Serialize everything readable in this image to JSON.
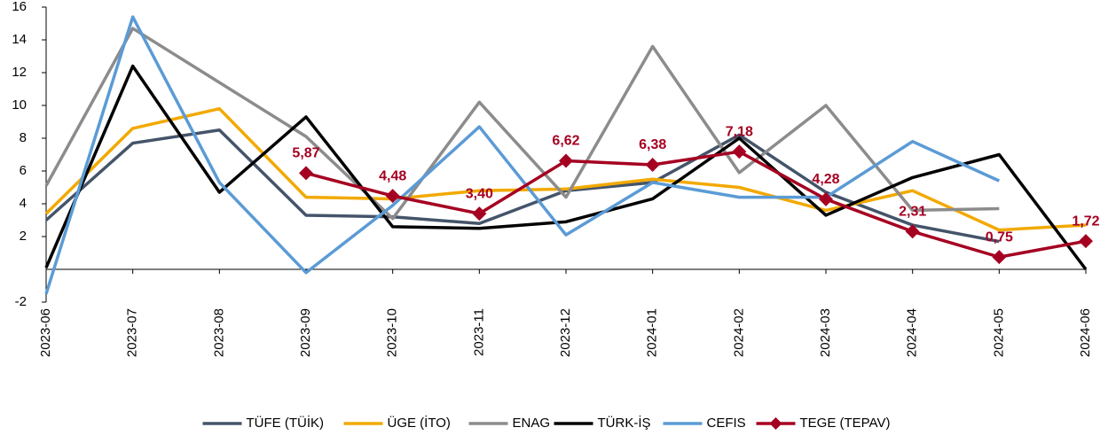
{
  "chart_data": {
    "type": "line",
    "categories": [
      "2023-06",
      "2023-07",
      "2023-08",
      "2023-09",
      "2023-10",
      "2023-11",
      "2023-12",
      "2024-01",
      "2024-02",
      "2024-03",
      "2024-04",
      "2024-05",
      "2024-06"
    ],
    "ylim": [
      -2,
      16
    ],
    "yticks": [
      -2,
      2,
      4,
      6,
      8,
      10,
      12,
      14,
      16
    ],
    "series": [
      {
        "name": "TÜFE (TÜİK)",
        "color": "#44546a",
        "values": [
          3.0,
          7.7,
          8.5,
          3.3,
          3.2,
          2.8,
          4.8,
          5.3,
          8.2,
          4.7,
          2.7,
          1.7,
          null
        ]
      },
      {
        "name": "ÜGE (İTO)",
        "color": "#f2a900",
        "values": [
          3.4,
          8.6,
          9.8,
          4.4,
          4.3,
          4.8,
          4.9,
          5.5,
          5.0,
          3.6,
          4.8,
          2.4,
          2.7
        ]
      },
      {
        "name": "ENAG",
        "color": "#8c8c8c",
        "values": [
          5.1,
          14.7,
          11.4,
          8.1,
          3.1,
          10.2,
          4.4,
          13.6,
          5.9,
          10.0,
          3.6,
          3.7,
          null
        ]
      },
      {
        "name": "TÜRK-İŞ",
        "color": "#000000",
        "values": [
          0.1,
          12.4,
          4.7,
          9.3,
          2.6,
          2.5,
          2.9,
          4.3,
          8.0,
          3.3,
          5.6,
          7.0,
          0.0
        ]
      },
      {
        "name": "CEFIS",
        "color": "#5b9bd5",
        "values": [
          -1.5,
          15.4,
          5.3,
          -0.2,
          3.9,
          8.7,
          2.1,
          5.3,
          4.4,
          4.4,
          7.8,
          5.4,
          null
        ]
      },
      {
        "name": "TEGE (TEPAV)",
        "color": "#a50021",
        "marker": "diamond",
        "values": [
          null,
          null,
          null,
          5.87,
          4.48,
          3.4,
          6.62,
          6.38,
          7.18,
          4.28,
          2.31,
          0.75,
          1.72
        ],
        "value_labels": [
          null,
          null,
          null,
          "5,87",
          "4,48",
          "3,40",
          "6,62",
          "6,38",
          "7,18",
          "4,28",
          "2,31",
          "0,75",
          "1,72"
        ]
      }
    ]
  }
}
